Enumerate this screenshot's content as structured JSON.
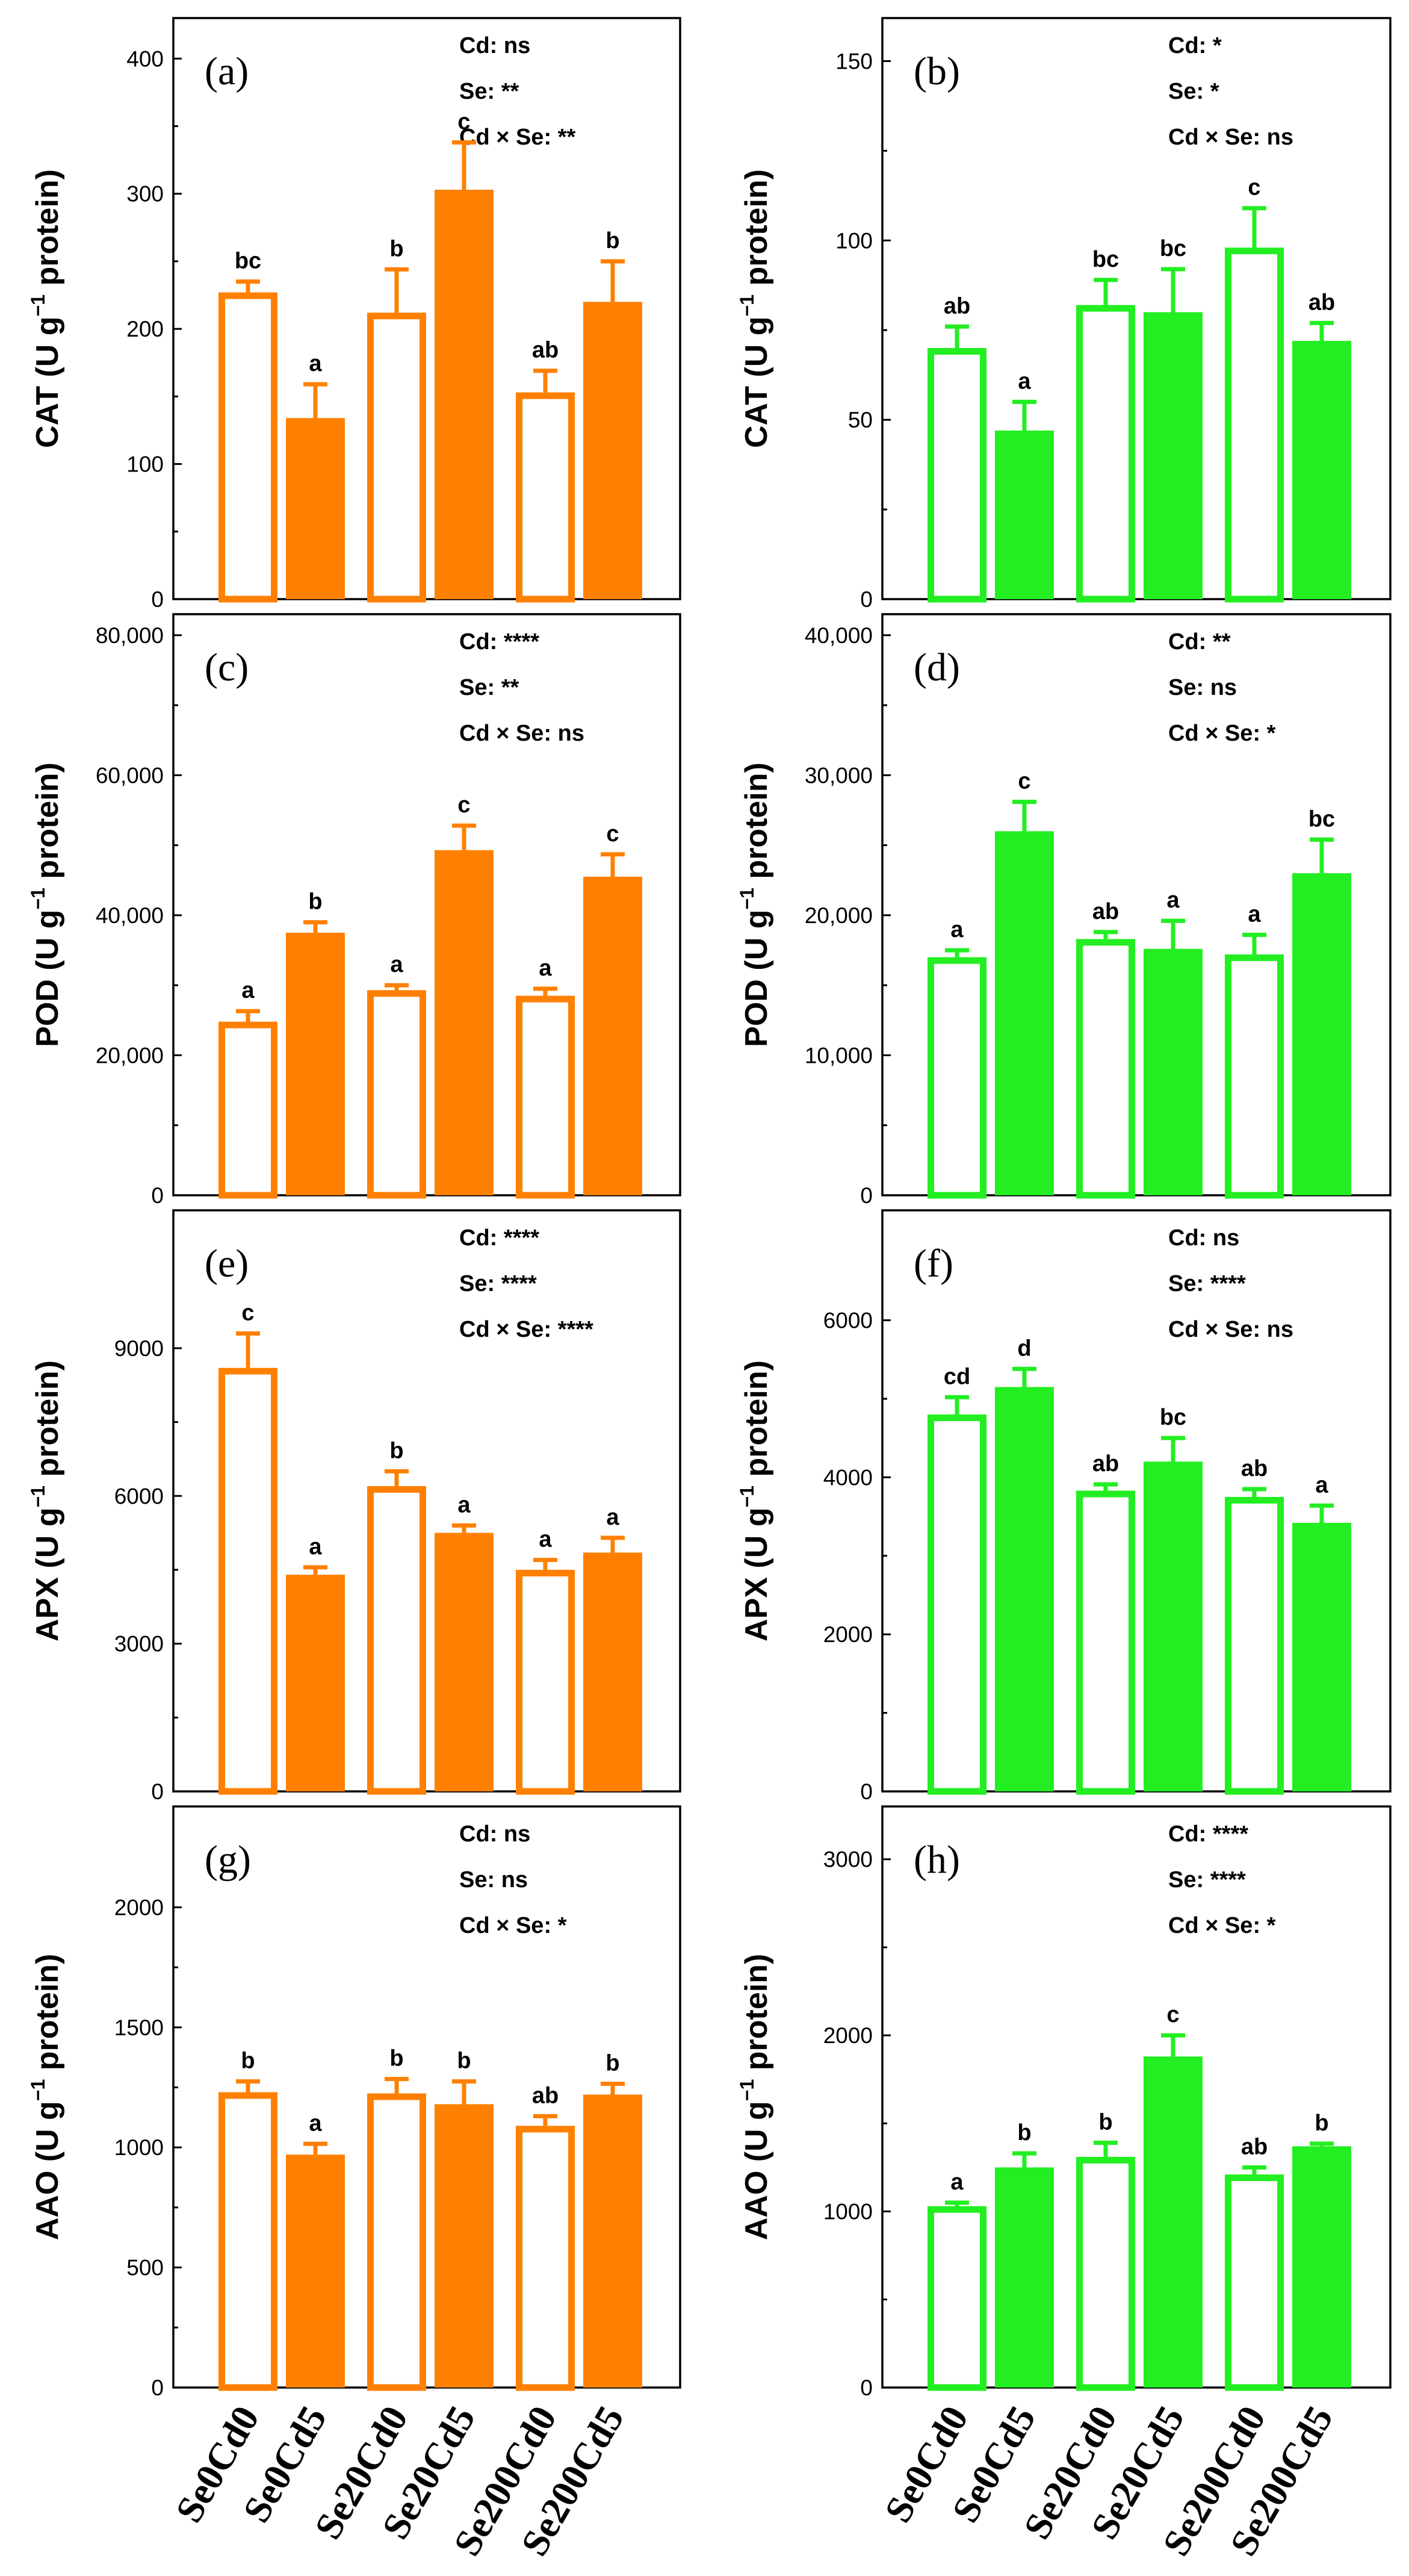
{
  "colors": {
    "orange": "#FF8000",
    "green": "#22EE22",
    "black": "#000000"
  },
  "chart_data": [
    {
      "id": "a",
      "type": "bar",
      "panel_label": "(a)",
      "enzyme": "CAT",
      "ylabel_unit": "(U g",
      "ylabel_exp": "−1",
      "ylabel_end": "protein)",
      "categories": [
        "Se0Cd0",
        "Se0Cd5",
        "Se20Cd0",
        "Se20Cd5",
        "Se200Cd0",
        "Se200Cd5"
      ],
      "values": [
        227,
        134,
        212,
        303,
        153,
        220
      ],
      "errors": [
        8,
        25,
        32,
        35,
        16,
        30
      ],
      "letters": [
        "bc",
        "a",
        "b",
        "c",
        "ab",
        "b"
      ],
      "stats": [
        "Cd: ns",
        "Se: **",
        "Cd × Se: **"
      ],
      "ylim": [
        0,
        430
      ],
      "yticks": [
        0,
        100,
        200,
        300,
        400
      ],
      "ytick_labels": [
        "0",
        "100",
        "200",
        "300",
        "400"
      ],
      "color": "orange"
    },
    {
      "id": "b",
      "type": "bar",
      "panel_label": "(b)",
      "enzyme": "CAT",
      "ylabel_unit": "(U g",
      "ylabel_exp": "−1",
      "ylabel_end": "protein)",
      "categories": [
        "Se0Cd0",
        "Se0Cd5",
        "Se20Cd0",
        "Se20Cd5",
        "Se200Cd0",
        "Se200Cd5"
      ],
      "values": [
        70,
        47,
        82,
        80,
        98,
        72
      ],
      "errors": [
        6,
        8,
        7,
        12,
        11,
        5
      ],
      "letters": [
        "ab",
        "a",
        "bc",
        "bc",
        "c",
        "ab"
      ],
      "stats": [
        "Cd: *",
        "Se: *",
        "Cd × Se: ns"
      ],
      "ylim": [
        0,
        162
      ],
      "yticks": [
        0,
        50,
        100,
        150
      ],
      "ytick_labels": [
        "0",
        "50",
        "100",
        "150"
      ],
      "color": "green"
    },
    {
      "id": "c",
      "type": "bar",
      "panel_label": "(c)",
      "enzyme": "POD",
      "ylabel_unit": "(U g",
      "ylabel_exp": "−1",
      "ylabel_end": "protein)",
      "categories": [
        "Se0Cd0",
        "Se0Cd5",
        "Se20Cd0",
        "Se20Cd5",
        "Se200Cd0",
        "Se200Cd5"
      ],
      "values": [
        24800,
        37500,
        29300,
        49300,
        28500,
        45500
      ],
      "errors": [
        1500,
        1500,
        700,
        3500,
        1000,
        3200
      ],
      "letters": [
        "a",
        "b",
        "a",
        "c",
        "a",
        "c"
      ],
      "stats": [
        "Cd: ****",
        "Se: **",
        "Cd × Se: ns"
      ],
      "ylim": [
        0,
        83000
      ],
      "yticks": [
        0,
        20000,
        40000,
        60000,
        80000
      ],
      "ytick_labels": [
        "0",
        "20,000",
        "40,000",
        "60,000",
        "80,000"
      ],
      "color": "orange"
    },
    {
      "id": "d",
      "type": "bar",
      "panel_label": "(d)",
      "enzyme": "POD",
      "ylabel_unit": "(U g",
      "ylabel_exp": "−1",
      "ylabel_end": "protein)",
      "categories": [
        "Se0Cd0",
        "Se0Cd5",
        "Se20Cd0",
        "Se20Cd5",
        "Se200Cd0",
        "Se200Cd5"
      ],
      "values": [
        17000,
        26000,
        18300,
        17600,
        17200,
        23000
      ],
      "errors": [
        500,
        2100,
        500,
        2000,
        1400,
        2400
      ],
      "letters": [
        "a",
        "c",
        "ab",
        "a",
        "a",
        "bc"
      ],
      "stats": [
        "Cd: **",
        "Se: ns",
        "Cd × Se: *"
      ],
      "ylim": [
        0,
        41500
      ],
      "yticks": [
        0,
        10000,
        20000,
        30000,
        40000
      ],
      "ytick_labels": [
        "0",
        "10,000",
        "20,000",
        "30,000",
        "40,000"
      ],
      "color": "green"
    },
    {
      "id": "e",
      "type": "bar",
      "panel_label": "(e)",
      "enzyme": "APX",
      "ylabel_unit": "(U g",
      "ylabel_exp": "−1",
      "ylabel_end": "protein)",
      "categories": [
        "Se0Cd0",
        "Se0Cd5",
        "Se20Cd0",
        "Se20Cd5",
        "Se200Cd0",
        "Se200Cd5"
      ],
      "values": [
        8600,
        4400,
        6200,
        5250,
        4500,
        4850
      ],
      "errors": [
        700,
        150,
        300,
        150,
        200,
        300
      ],
      "letters": [
        "c",
        "a",
        "b",
        "a",
        "a",
        "a"
      ],
      "stats": [
        "Cd: ****",
        "Se: ****",
        "Cd × Se: ****"
      ],
      "ylim": [
        0,
        11800
      ],
      "yticks": [
        0,
        3000,
        6000,
        9000
      ],
      "ytick_labels": [
        "0",
        "3000",
        "6000",
        "9000"
      ],
      "color": "orange"
    },
    {
      "id": "f",
      "type": "bar",
      "panel_label": "(f)",
      "enzyme": "APX",
      "ylabel_unit": "(U g",
      "ylabel_exp": "−1",
      "ylabel_end": "protein)",
      "categories": [
        "Se0Cd0",
        "Se0Cd5",
        "Se20Cd0",
        "Se20Cd5",
        "Se200Cd0",
        "Se200Cd5"
      ],
      "values": [
        4800,
        5150,
        3830,
        4200,
        3750,
        3420
      ],
      "errors": [
        220,
        230,
        80,
        300,
        100,
        220
      ],
      "letters": [
        "cd",
        "d",
        "ab",
        "bc",
        "ab",
        "a"
      ],
      "stats": [
        "Cd: ns",
        "Se: ****",
        "Cd × Se: ns"
      ],
      "ylim": [
        0,
        7400
      ],
      "yticks": [
        0,
        2000,
        4000,
        6000
      ],
      "ytick_labels": [
        "0",
        "2000",
        "4000",
        "6000"
      ],
      "color": "green"
    },
    {
      "id": "g",
      "type": "bar",
      "panel_label": "(g)",
      "enzyme": "AAO",
      "ylabel_unit": "(U g",
      "ylabel_exp": "−1",
      "ylabel_end": "protein)",
      "categories": [
        "Se0Cd0",
        "Se0Cd5",
        "Se20Cd0",
        "Se20Cd5",
        "Se200Cd0",
        "Se200Cd5"
      ],
      "values": [
        1230,
        970,
        1225,
        1180,
        1090,
        1220
      ],
      "errors": [
        45,
        45,
        60,
        95,
        40,
        45
      ],
      "letters": [
        "b",
        "a",
        "b",
        "b",
        "ab",
        "b"
      ],
      "stats": [
        "Cd: ns",
        "Se: ns",
        "Cd × Se: *"
      ],
      "ylim": [
        0,
        2420
      ],
      "yticks": [
        0,
        500,
        1000,
        1500,
        2000
      ],
      "ytick_labels": [
        "0",
        "500",
        "1000",
        "1500",
        "2000"
      ],
      "color": "orange"
    },
    {
      "id": "h",
      "type": "bar",
      "panel_label": "(h)",
      "enzyme": "AAO",
      "ylabel_unit": "(U g",
      "ylabel_exp": "−1",
      "ylabel_end": "protein)",
      "categories": [
        "Se0Cd0",
        "Se0Cd5",
        "Se20Cd0",
        "Se20Cd5",
        "Se200Cd0",
        "Se200Cd5"
      ],
      "values": [
        1030,
        1250,
        1310,
        1880,
        1210,
        1370
      ],
      "errors": [
        20,
        80,
        80,
        120,
        40,
        15
      ],
      "letters": [
        "a",
        "b",
        "b",
        "c",
        "ab",
        "b"
      ],
      "stats": [
        "Cd: ****",
        "Se: ****",
        "Cd × Se: *"
      ],
      "ylim": [
        0,
        3300
      ],
      "yticks": [
        0,
        1000,
        2000,
        3000
      ],
      "ytick_labels": [
        "0",
        "1000",
        "2000",
        "3000"
      ],
      "color": "green"
    }
  ],
  "x_tick_labels": [
    "Se0Cd0",
    "Se0Cd5",
    "Se20Cd0",
    "Se20Cd5",
    "Se200Cd0",
    "Se200Cd5"
  ]
}
